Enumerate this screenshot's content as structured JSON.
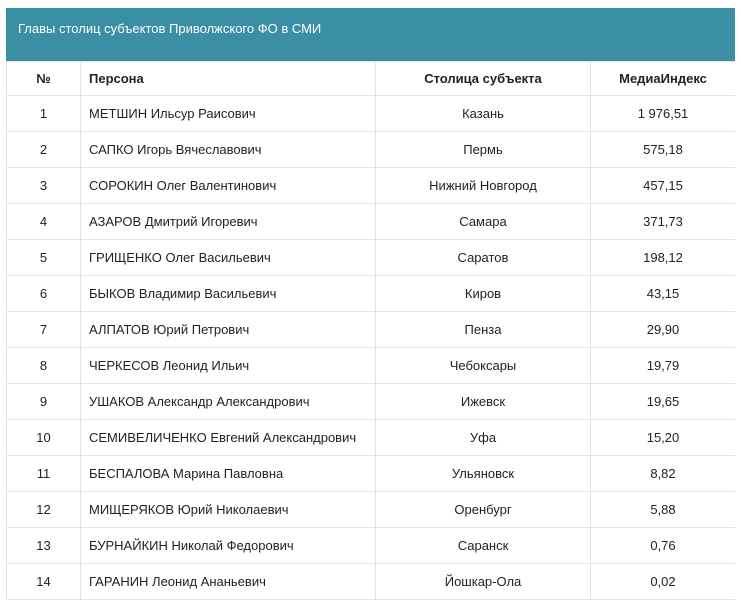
{
  "title": "Главы столиц субъектов Приволжского ФО в СМИ",
  "table": {
    "headers": {
      "num": "№",
      "person": "Персона",
      "capital": "Столица субъекта",
      "index": "МедиаИндекс"
    },
    "rows": [
      {
        "num": "1",
        "person": "МЕТШИН Ильсур Раисович",
        "capital": "Казань",
        "index": "1 976,51"
      },
      {
        "num": "2",
        "person": "САПКО Игорь Вячеславович",
        "capital": "Пермь",
        "index": "575,18"
      },
      {
        "num": "3",
        "person": "СОРОКИН Олег Валентинович",
        "capital": "Нижний Новгород",
        "index": "457,15"
      },
      {
        "num": "4",
        "person": "АЗАРОВ Дмитрий Игоревич",
        "capital": "Самара",
        "index": "371,73"
      },
      {
        "num": "5",
        "person": "ГРИЩЕНКО Олег Васильевич",
        "capital": "Саратов",
        "index": "198,12"
      },
      {
        "num": "6",
        "person": "БЫКОВ Владимир Васильевич",
        "capital": "Киров",
        "index": "43,15"
      },
      {
        "num": "7",
        "person": "АЛПАТОВ Юрий Петрович",
        "capital": "Пенза",
        "index": "29,90"
      },
      {
        "num": "8",
        "person": "ЧЕРКЕСОВ Леонид Ильич",
        "capital": "Чебоксары",
        "index": "19,79"
      },
      {
        "num": "9",
        "person": "УШАКОВ Александр Александрович",
        "capital": "Ижевск",
        "index": "19,65"
      },
      {
        "num": "10",
        "person": "СЕМИВЕЛИЧЕНКО Евгений Александрович",
        "capital": "Уфа",
        "index": "15,20"
      },
      {
        "num": "11",
        "person": "БЕСПАЛОВА Марина Павловна",
        "capital": "Ульяновск",
        "index": "8,82"
      },
      {
        "num": "12",
        "person": "МИЩЕРЯКОВ Юрий Николаевич",
        "capital": "Оренбург",
        "index": "5,88"
      },
      {
        "num": "13",
        "person": "БУРНАЙКИН Николай Федорович",
        "capital": "Саранск",
        "index": "0,76"
      },
      {
        "num": "14",
        "person": "ГАРАНИН Леонид Ананьевич",
        "capital": "Йошкар-Ола",
        "index": "0,02"
      }
    ]
  }
}
